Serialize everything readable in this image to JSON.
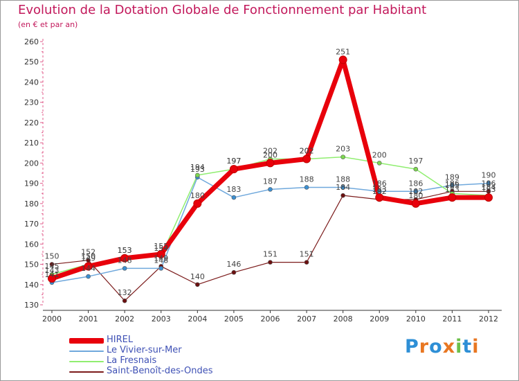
{
  "header": {
    "title": "Evolution de la Dotation Globale de Fonctionnement par Habitant",
    "subtitle": "(en € et par an)"
  },
  "chart_data": {
    "type": "line",
    "title": "Evolution de la Dotation Globale de Fonctionnement par Habitant",
    "subtitle": "(en € et par an)",
    "xlabel": "",
    "ylabel": "",
    "x": [
      "2000",
      "2001",
      "2002",
      "2003",
      "2004",
      "2005",
      "2006",
      "2007",
      "2008",
      "2009",
      "2010",
      "2011",
      "2012"
    ],
    "ylim": [
      130,
      260
    ],
    "yticks": [
      130,
      140,
      150,
      160,
      170,
      180,
      190,
      200,
      210,
      220,
      230,
      240,
      250,
      260
    ],
    "grid": false,
    "legend_position": "bottom-left",
    "series": [
      {
        "name": "HIREL",
        "color": "#e8000b",
        "values": [
          143,
          149,
          153,
          155,
          180,
          197,
          200,
          202,
          251,
          183,
          180,
          183,
          183
        ]
      },
      {
        "name": "Le Vivier-sur-Mer",
        "color": "#6fa8dc",
        "values": [
          141,
          144,
          148,
          148,
          193,
          183,
          187,
          188,
          188,
          186,
          186,
          189,
          190
        ]
      },
      {
        "name": "La Fresnais",
        "color": "#90ee70",
        "values": [
          145,
          150,
          153,
          154,
          194,
          197,
          202,
          202,
          203,
          200,
          197,
          185,
          184
        ]
      },
      {
        "name": "Saint-Benoît-des-Ondes",
        "color": "#7b1a1a",
        "values": [
          150,
          152,
          132,
          149,
          140,
          146,
          151,
          151,
          184,
          182,
          182,
          186,
          186
        ]
      }
    ]
  },
  "brand": {
    "letters": [
      "P",
      "r",
      "o",
      "x",
      "i",
      "t",
      "i"
    ],
    "colors": [
      "#2e8fd6",
      "#e87722",
      "#2e8fd6",
      "#e87722",
      "#6cc04a",
      "#2e8fd6",
      "#e87722"
    ]
  }
}
